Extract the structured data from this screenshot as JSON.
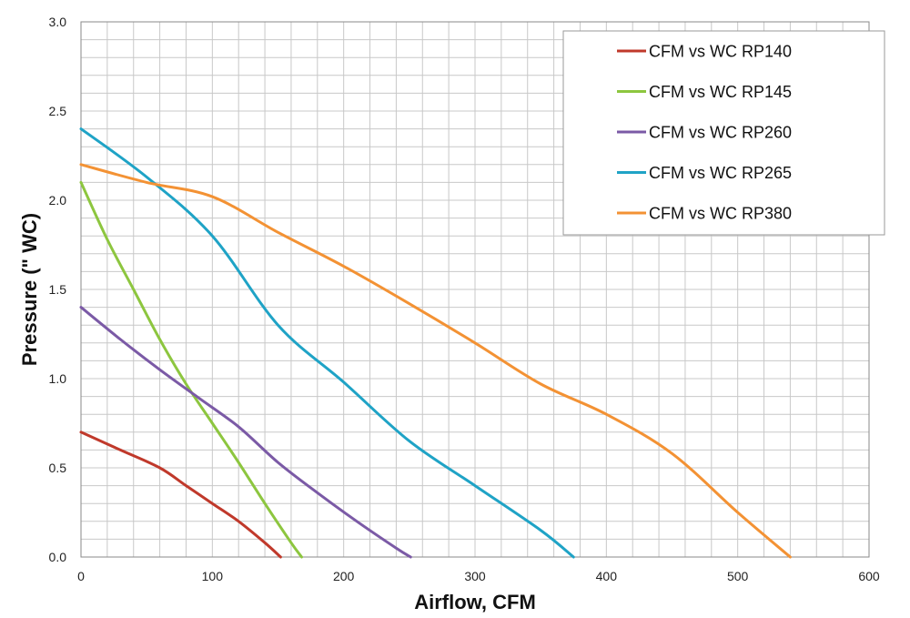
{
  "chart_data": {
    "type": "line",
    "title": "",
    "xlabel": "Airflow, CFM",
    "ylabel": "Pressure (\" WC)",
    "xlim": [
      0,
      600
    ],
    "ylim": [
      0,
      3.0
    ],
    "x_ticks": [
      0,
      100,
      200,
      300,
      400,
      500,
      600
    ],
    "x_tick_labels": [
      "0",
      "100",
      "200",
      "300",
      "400",
      "500",
      "600"
    ],
    "y_ticks": [
      0,
      0.5,
      1.0,
      1.5,
      2.0,
      2.5,
      3.0
    ],
    "y_tick_labels": [
      "0.0",
      "0.5",
      "1.0",
      "1.5",
      "2.0",
      "2.5",
      "3.0"
    ],
    "grid": true,
    "minor_grid_step_x": 20,
    "minor_grid_step_y": 0.1,
    "legend_position": "top-right",
    "series": [
      {
        "name": "CFM vs WC RP140",
        "color": "#c0392b",
        "x": [
          0,
          30,
          60,
          80,
          100,
          120,
          140,
          152
        ],
        "y": [
          0.7,
          0.6,
          0.5,
          0.4,
          0.3,
          0.2,
          0.08,
          0.0
        ]
      },
      {
        "name": "CFM vs WC RP145",
        "color": "#8dc63f",
        "x": [
          0,
          20,
          40,
          60,
          80,
          100,
          120,
          140,
          160,
          168
        ],
        "y": [
          2.1,
          1.78,
          1.5,
          1.22,
          0.97,
          0.75,
          0.53,
          0.3,
          0.08,
          0.0
        ]
      },
      {
        "name": "CFM vs WC RP260",
        "color": "#7b5aa6",
        "x": [
          0,
          30,
          60,
          90,
          120,
          150,
          180,
          210,
          240,
          251
        ],
        "y": [
          1.4,
          1.22,
          1.05,
          0.89,
          0.73,
          0.53,
          0.36,
          0.2,
          0.05,
          0.0
        ]
      },
      {
        "name": "CFM vs WC RP265",
        "color": "#1fa3c6",
        "x": [
          0,
          50,
          100,
          150,
          200,
          250,
          300,
          350,
          375
        ],
        "y": [
          2.4,
          2.13,
          1.8,
          1.3,
          0.98,
          0.65,
          0.4,
          0.15,
          0.0
        ]
      },
      {
        "name": "CFM vs WC RP380",
        "color": "#f39234",
        "x": [
          0,
          50,
          100,
          150,
          200,
          250,
          300,
          350,
          400,
          450,
          500,
          540
        ],
        "y": [
          2.2,
          2.1,
          2.02,
          1.82,
          1.63,
          1.42,
          1.2,
          0.97,
          0.8,
          0.58,
          0.25,
          0.0
        ]
      }
    ]
  }
}
